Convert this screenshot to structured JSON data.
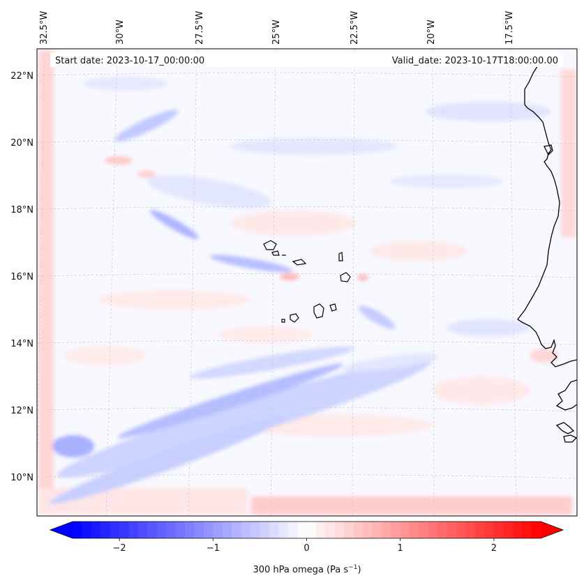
{
  "figure": {
    "start_date": "Start date: 2023-10-17_00:00:00",
    "valid_date": "Valid_date: 2023-10-17T18:00:00.00",
    "variable": "300 hPa omega",
    "units_prefix": "(Pa s",
    "units_exponent": "−1",
    "units_suffix": ")"
  },
  "map": {
    "lon_labels": [
      "32.5°W",
      "30°W",
      "27.5°W",
      "25°W",
      "22.5°W",
      "20°W",
      "17.5°W"
    ],
    "lat_labels": [
      "22°N",
      "20°N",
      "18°N",
      "16°N",
      "14°N",
      "12°N",
      "10°N"
    ],
    "grid_style": "dashed gray",
    "features": [
      "Cabo Verde islands",
      "West African coastline (Mauritania, Senegal, Gambia, Guinea-Bissau)"
    ]
  },
  "colorbar": {
    "ticks": [
      {
        "value": -2,
        "label": "−2"
      },
      {
        "value": -1,
        "label": "−1"
      },
      {
        "value": 0,
        "label": "0"
      },
      {
        "value": 1,
        "label": "1"
      },
      {
        "value": 2,
        "label": "2"
      }
    ],
    "vmin": -2.5,
    "vmax": 2.5,
    "colormap": "bwr",
    "extend": "both",
    "colors": {
      "low": "#0000ff",
      "mid": "#ffffff",
      "high": "#ff0000"
    }
  }
}
